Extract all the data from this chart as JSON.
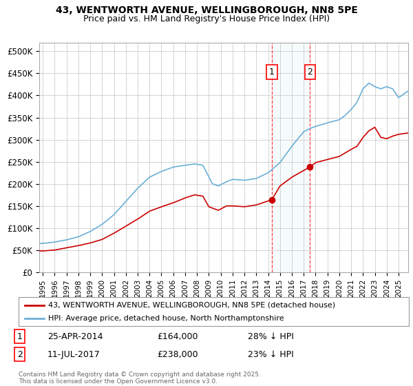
{
  "title_line1": "43, WENTWORTH AVENUE, WELLINGBOROUGH, NN8 5PE",
  "title_line2": "Price paid vs. HM Land Registry's House Price Index (HPI)",
  "ylim": [
    0,
    520000
  ],
  "yticks": [
    0,
    50000,
    100000,
    150000,
    200000,
    250000,
    300000,
    350000,
    400000,
    450000,
    500000
  ],
  "ytick_labels": [
    "£0",
    "£50K",
    "£100K",
    "£150K",
    "£200K",
    "£250K",
    "£300K",
    "£350K",
    "£400K",
    "£450K",
    "£500K"
  ],
  "xlim_start": 1994.7,
  "xlim_end": 2025.8,
  "hpi_color": "#6aafd6",
  "price_color": "#cc0000",
  "sale1_x": 2014.32,
  "sale1_y": 164000,
  "sale2_x": 2017.53,
  "sale2_y": 238000,
  "sale1_label": "1",
  "sale2_label": "2",
  "sale1_date": "25-APR-2014",
  "sale1_price": "£164,000",
  "sale1_hpi": "28% ↓ HPI",
  "sale2_date": "11-JUL-2017",
  "sale2_price": "£238,000",
  "sale2_hpi": "23% ↓ HPI",
  "legend_line1": "43, WENTWORTH AVENUE, WELLINGBOROUGH, NN8 5PE (detached house)",
  "legend_line2": "HPI: Average price, detached house, North Northamptonshire",
  "footnote": "Contains HM Land Registry data © Crown copyright and database right 2025.\nThis data is licensed under the Open Government Licence v3.0.",
  "background_color": "#ffffff",
  "grid_color": "#cccccc",
  "hpi_knots": [
    1995,
    1996,
    1997,
    1998,
    1999,
    2000,
    2001,
    2002,
    2003,
    2004,
    2005,
    2006,
    2007,
    2007.8,
    2008.5,
    2009.3,
    2009.8,
    2010.5,
    2011,
    2012,
    2013,
    2014,
    2015,
    2016,
    2017,
    2017.5,
    2018,
    2019,
    2020,
    2020.5,
    2021,
    2021.5,
    2022,
    2022.5,
    2023,
    2023.5,
    2024,
    2024.5,
    2025,
    2025.8
  ],
  "hpi_vals": [
    65000,
    68000,
    73000,
    80000,
    92000,
    108000,
    130000,
    160000,
    190000,
    215000,
    228000,
    238000,
    242000,
    245000,
    242000,
    200000,
    195000,
    205000,
    210000,
    208000,
    212000,
    225000,
    248000,
    285000,
    318000,
    325000,
    330000,
    338000,
    345000,
    355000,
    368000,
    385000,
    415000,
    428000,
    420000,
    415000,
    420000,
    415000,
    395000,
    410000
  ],
  "prop_knots": [
    1995,
    1996,
    1997,
    1998,
    1999,
    2000,
    2001,
    2002,
    2003,
    2004,
    2005,
    2006,
    2007,
    2007.8,
    2008.5,
    2009.0,
    2009.8,
    2010.5,
    2011,
    2012,
    2013,
    2014.32,
    2015,
    2016,
    2017.53,
    2018,
    2019,
    2020,
    2020.5,
    2021,
    2021.5,
    2022,
    2022.5,
    2023,
    2023.5,
    2024,
    2024.5,
    2025,
    2025.8
  ],
  "prop_vals": [
    48000,
    50000,
    55000,
    60000,
    66000,
    74000,
    88000,
    104000,
    120000,
    138000,
    148000,
    157000,
    168000,
    175000,
    172000,
    148000,
    140000,
    150000,
    150000,
    148000,
    152000,
    164000,
    195000,
    215000,
    238000,
    248000,
    255000,
    262000,
    270000,
    278000,
    285000,
    305000,
    320000,
    328000,
    305000,
    302000,
    308000,
    312000,
    315000
  ]
}
